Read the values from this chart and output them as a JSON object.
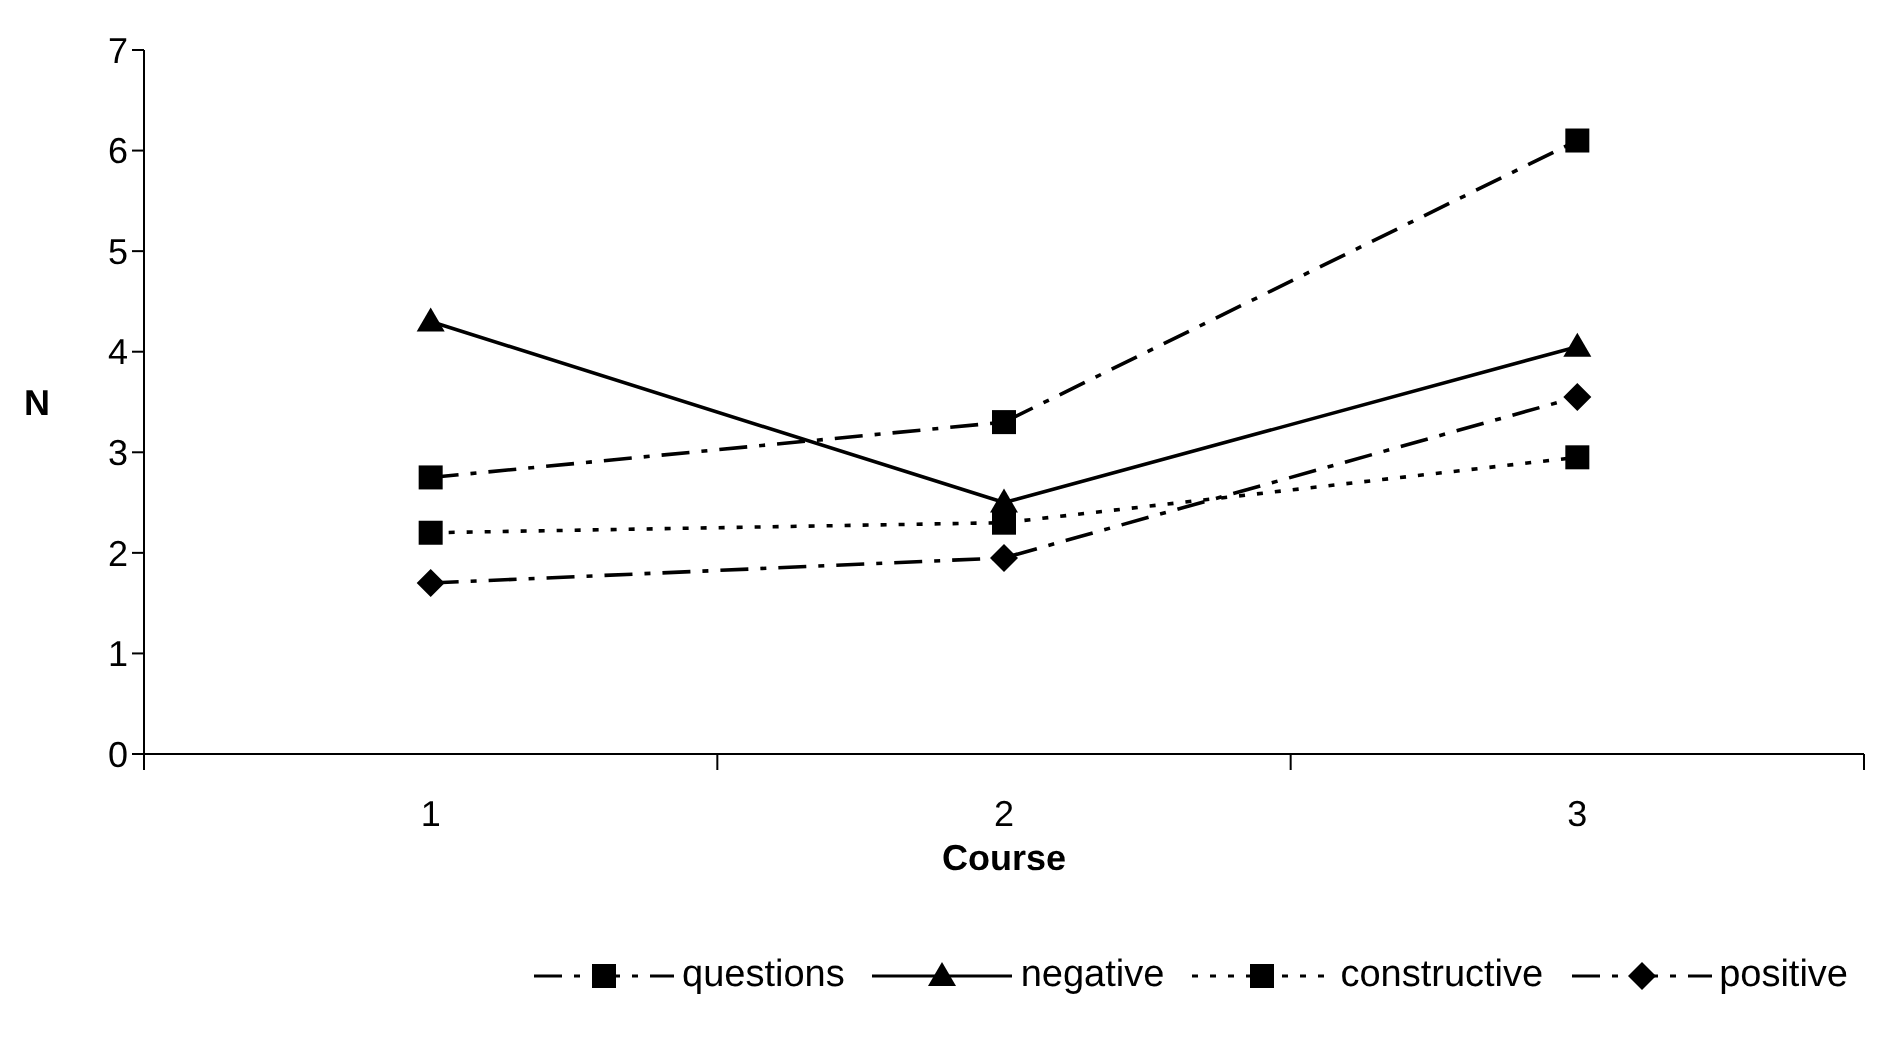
{
  "chart_data": {
    "type": "line",
    "xlabel": "Course",
    "ylabel": "N",
    "categories": [
      "1",
      "2",
      "3"
    ],
    "ylim": [
      0,
      7
    ],
    "yticks": [
      0,
      1,
      2,
      3,
      4,
      5,
      6,
      7
    ],
    "grid": false,
    "legend": "bottom",
    "series": [
      {
        "name": "questions",
        "color": "#000000",
        "values": [
          2.75,
          3.3,
          6.1
        ],
        "marker": "square",
        "line_style": "dashed"
      },
      {
        "name": "negative",
        "color": "#000000",
        "values": [
          4.3,
          2.5,
          4.05
        ],
        "marker": "triangle",
        "line_style": "solid"
      },
      {
        "name": "constructive",
        "color": "#000000",
        "values": [
          2.2,
          2.3,
          2.95
        ],
        "marker": "square",
        "line_style": "dotted"
      },
      {
        "name": "positive",
        "color": "#000000",
        "values": [
          1.7,
          1.95,
          3.55
        ],
        "marker": "diamond",
        "line_style": "dashed"
      }
    ]
  }
}
